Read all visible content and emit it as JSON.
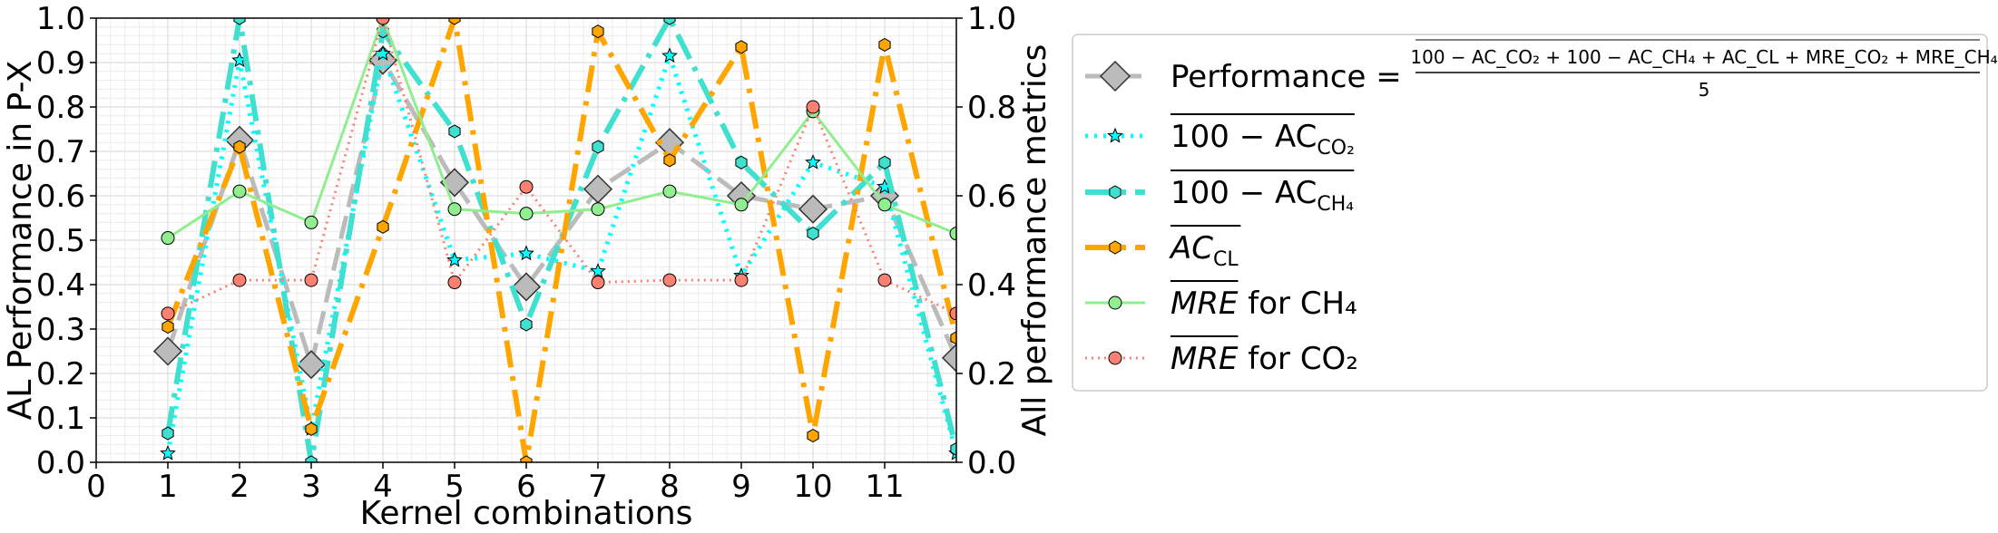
{
  "chart_data": {
    "type": "line",
    "xlabel": "Kernel combinations",
    "ylabel_left": "AL Performance in P-X",
    "ylabel_right": "All performance metrics",
    "xlim": [
      0,
      12
    ],
    "ylim_left": [
      0,
      1.0
    ],
    "ylim_right": [
      0,
      1.0
    ],
    "x_ticks": [
      "0",
      "1",
      "2",
      "3",
      "4",
      "5",
      "6",
      "7",
      "8",
      "9",
      "10",
      "11"
    ],
    "y_ticks_left": [
      "0.0",
      "0.1",
      "0.2",
      "0.3",
      "0.4",
      "0.5",
      "0.6",
      "0.7",
      "0.8",
      "0.9",
      "1.0"
    ],
    "y_ticks_right": [
      "0.0",
      "0.2",
      "0.4",
      "0.6",
      "0.8",
      "1.0"
    ],
    "grid": true,
    "legend_position": "right-outside",
    "x": [
      1,
      2,
      3,
      4,
      5,
      6,
      7,
      8,
      9,
      10,
      11,
      12
    ],
    "series": [
      {
        "key": "performance",
        "legend_label": "Performance = ",
        "formula_numerator": "100 − AC_CO₂ + 100 − AC_CH₄ + AC_CL + MRE_CO₂ + MRE_CH₄",
        "formula_denominator": "5",
        "color": "#bbbbbb",
        "marker": "diamond",
        "dash": "26,10",
        "width": 5,
        "values": [
          0.25,
          0.725,
          0.22,
          0.905,
          0.63,
          0.395,
          0.615,
          0.72,
          0.6,
          0.57,
          0.6,
          0.235
        ]
      },
      {
        "key": "ac_co2",
        "legend_main": "100 − AC",
        "legend_sub": "CO₂",
        "legend_suffix": "",
        "color": "#00ffff",
        "marker": "star",
        "dash": "3,7",
        "width": 5,
        "values": [
          0.02,
          0.905,
          0.075,
          0.92,
          0.455,
          0.47,
          0.43,
          0.915,
          0.42,
          0.675,
          0.62,
          0.02
        ]
      },
      {
        "key": "ac_ch4",
        "legend_main": "100 − AC",
        "legend_sub": "CH₄",
        "legend_suffix": "",
        "color": "#40e0d0",
        "marker": "hexagon",
        "dash": "30,10,5,10",
        "width": 6,
        "values": [
          0.065,
          1.0,
          0.0,
          0.97,
          0.745,
          0.31,
          0.71,
          1.0,
          0.675,
          0.515,
          0.675,
          0.03
        ]
      },
      {
        "key": "ac_cl",
        "legend_main": "AC",
        "legend_sub": "CL",
        "legend_suffix": "",
        "color": "#ffa500",
        "marker": "hexagon",
        "dash": "30,10,5,10",
        "width": 6,
        "values": [
          0.305,
          0.71,
          0.075,
          0.53,
          1.0,
          0.0,
          0.97,
          0.68,
          0.935,
          0.06,
          0.94,
          0.28
        ]
      },
      {
        "key": "mre_ch4",
        "legend_main": "MRE",
        "legend_sub": "",
        "legend_suffix": " for CH₄",
        "color": "#90ee90",
        "marker": "circle",
        "dash": "",
        "width": 3,
        "values": [
          0.505,
          0.61,
          0.54,
          1.0,
          0.57,
          0.56,
          0.57,
          0.61,
          0.58,
          0.79,
          0.58,
          0.515
        ]
      },
      {
        "key": "mre_co2",
        "legend_main": "MRE",
        "legend_sub": "",
        "legend_suffix": " for CO₂",
        "color": "#fa8072",
        "marker": "circle",
        "dash": "2,5",
        "width": 3,
        "values": [
          0.335,
          0.41,
          0.41,
          1.0,
          0.405,
          0.62,
          0.405,
          0.41,
          0.41,
          0.8,
          0.41,
          0.335
        ]
      }
    ]
  }
}
